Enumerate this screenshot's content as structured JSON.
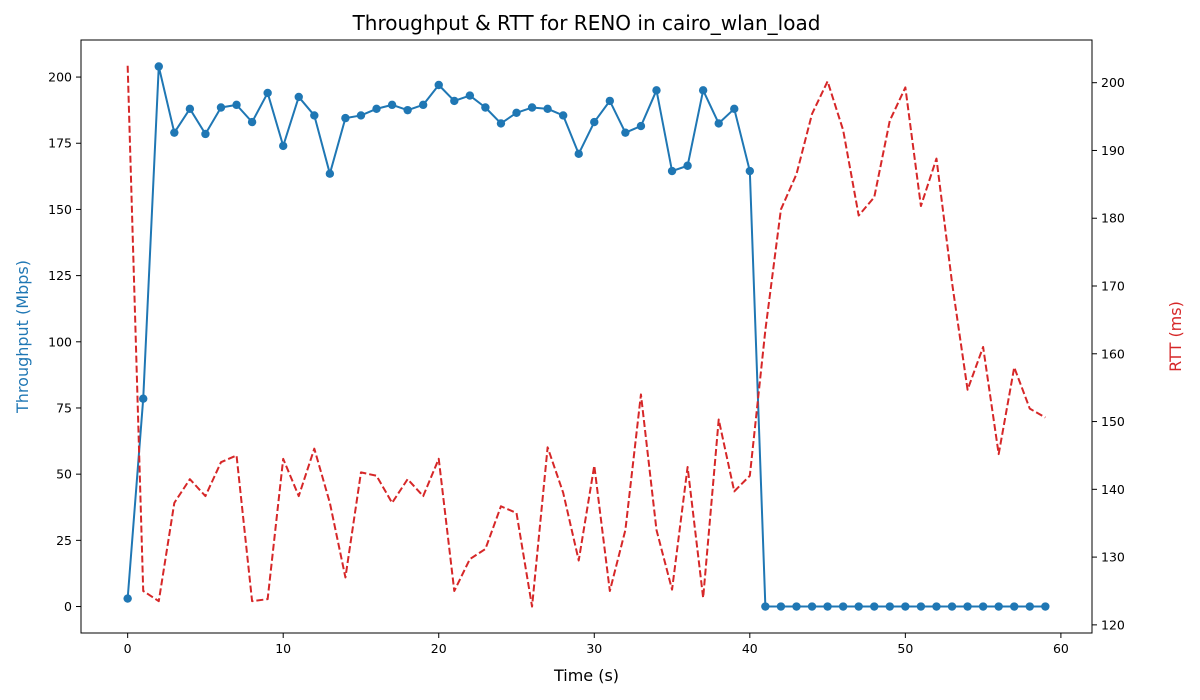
{
  "chart_data": {
    "type": "line",
    "title": "Throughput & RTT for RENO in cairo_wlan_load",
    "xlabel": "Time (s)",
    "ylabel_left": "Throughput (Mbps)",
    "ylabel_right": "RTT (ms)",
    "xlim": [
      -3,
      62
    ],
    "ylim_left": [
      -10,
      214
    ],
    "ylim_right": [
      118.8,
      206.3
    ],
    "xticks": [
      0,
      10,
      20,
      30,
      40,
      50,
      60
    ],
    "yticks_left": [
      0,
      25,
      50,
      75,
      100,
      125,
      150,
      175,
      200
    ],
    "yticks_right": [
      120,
      130,
      140,
      150,
      160,
      170,
      180,
      190,
      200
    ],
    "colors": {
      "throughput": "#1f77b4",
      "rtt": "#d62728",
      "axis": "#000000"
    },
    "grid": false,
    "series": [
      {
        "axis": "left",
        "style": "solid-with-markers",
        "x": [
          0,
          1,
          2,
          3,
          4,
          5,
          6,
          7,
          8,
          9,
          10,
          11,
          12,
          13,
          14,
          15,
          16,
          17,
          18,
          19,
          20,
          21,
          22,
          23,
          24,
          25,
          26,
          27,
          28,
          29,
          30,
          31,
          32,
          33,
          34,
          35,
          36,
          37,
          38,
          39,
          40,
          41,
          42,
          43,
          44,
          45,
          46,
          47,
          48,
          49,
          50,
          51,
          52,
          53,
          54,
          55,
          56,
          57,
          58,
          59
        ],
        "values": [
          3,
          78.5,
          204,
          179,
          188,
          178.5,
          188.5,
          189.5,
          183,
          194,
          174,
          192.5,
          185.5,
          163.5,
          184.5,
          185.5,
          188,
          189.5,
          187.5,
          189.5,
          197,
          191,
          193,
          188.5,
          182.5,
          186.5,
          188.5,
          188,
          185.5,
          171,
          183,
          191,
          179,
          181.5,
          195,
          164.5,
          166.5,
          195,
          182.5,
          188,
          164.5,
          0,
          0,
          0,
          0,
          0,
          0,
          0,
          0,
          0,
          0,
          0,
          0,
          0,
          0,
          0,
          0,
          0,
          0,
          0
        ]
      },
      {
        "axis": "right",
        "style": "dashed",
        "x": [
          0,
          1,
          2,
          3,
          4,
          5,
          6,
          7,
          8,
          9,
          10,
          11,
          12,
          13,
          14,
          15,
          16,
          17,
          18,
          19,
          20,
          21,
          22,
          23,
          24,
          25,
          26,
          27,
          28,
          29,
          30,
          31,
          32,
          33,
          34,
          35,
          36,
          37,
          38,
          39,
          40,
          41,
          42,
          43,
          44,
          45,
          46,
          47,
          48,
          49,
          50,
          51,
          52,
          53,
          54,
          55,
          56,
          57,
          58,
          59
        ],
        "values": [
          202.5,
          125,
          123.5,
          138,
          141.5,
          139,
          144,
          145,
          123.5,
          123.8,
          144.5,
          139,
          146,
          138,
          127,
          142.5,
          142,
          138,
          141.5,
          139,
          144.5,
          125,
          129.7,
          131.2,
          137.5,
          136.5,
          122.7,
          146.2,
          139.5,
          129.5,
          143.5,
          125,
          134,
          154,
          134,
          125.2,
          143.3,
          124,
          150.3,
          139.7,
          142,
          163.5,
          181.3,
          186.5,
          195.4,
          200.2,
          193,
          180.4,
          183.1,
          194.4,
          199.3,
          181.8,
          188.8,
          170.5,
          154.7,
          161,
          145.2,
          158,
          151.9,
          150.6
        ]
      }
    ]
  }
}
